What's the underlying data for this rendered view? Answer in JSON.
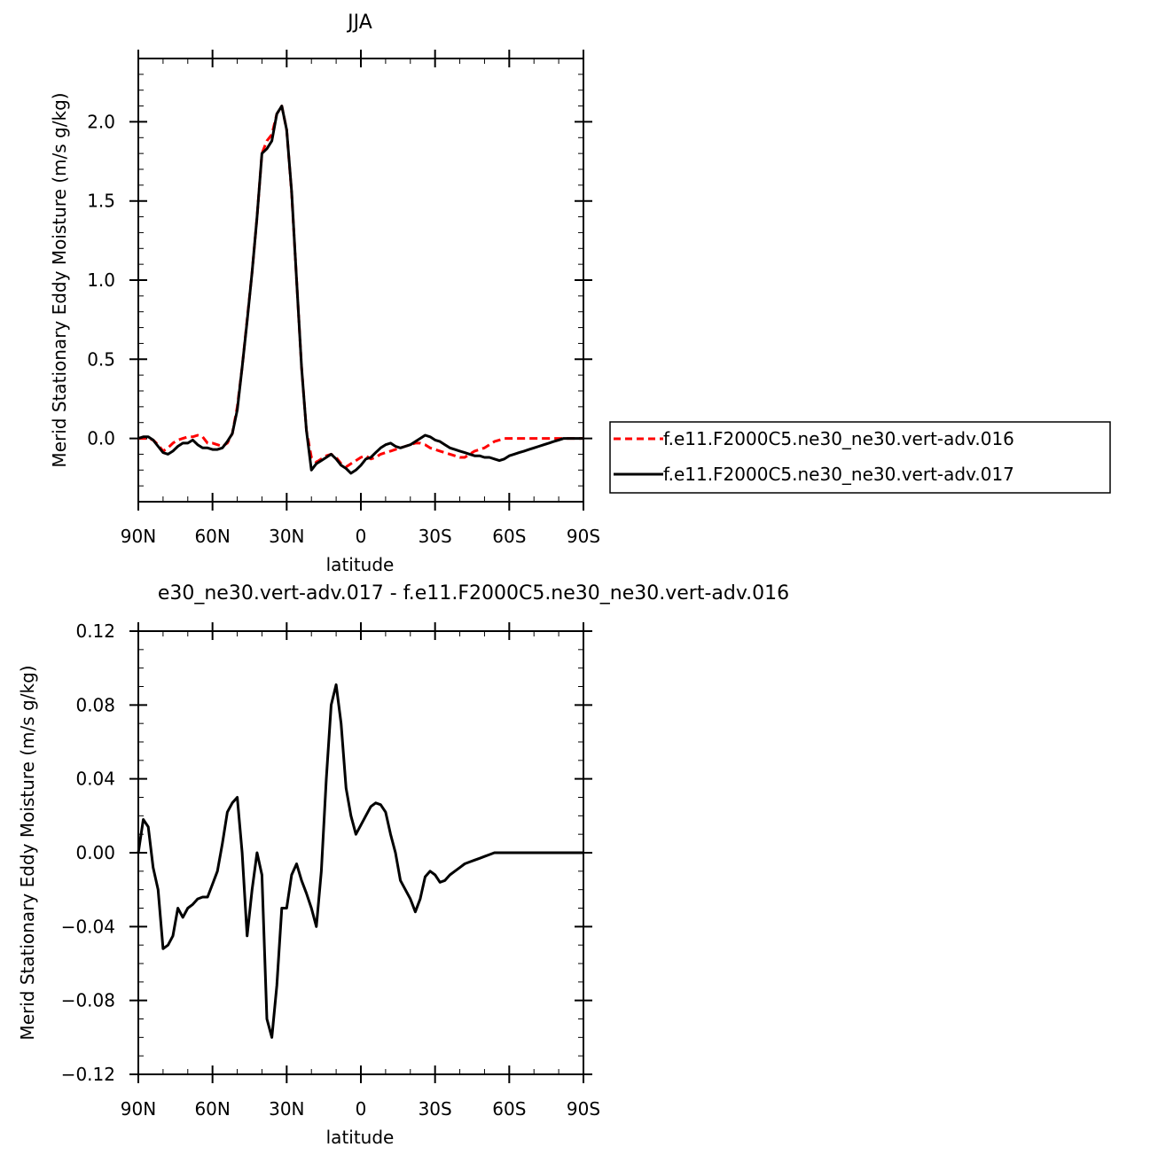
{
  "chart_data": [
    {
      "type": "line",
      "title": "JJA",
      "xlabel": "latitude",
      "ylabel": "Merid Stationary Eddy Moisture (m/s g/kg)",
      "xlim": [
        90,
        -90
      ],
      "ylim": [
        -0.4,
        2.4
      ],
      "x_ticks": [
        {
          "value": 90,
          "label": "90N"
        },
        {
          "value": 60,
          "label": "60N"
        },
        {
          "value": 30,
          "label": "30N"
        },
        {
          "value": 0,
          "label": "0"
        },
        {
          "value": -30,
          "label": "30S"
        },
        {
          "value": -60,
          "label": "60S"
        },
        {
          "value": -90,
          "label": "90S"
        }
      ],
      "y_ticks": [
        {
          "value": 0.0,
          "label": "0.0"
        },
        {
          "value": 0.5,
          "label": "0.5"
        },
        {
          "value": 1.0,
          "label": "1.0"
        },
        {
          "value": 1.5,
          "label": "1.5"
        },
        {
          "value": 2.0,
          "label": "2.0"
        }
      ],
      "legend": "right",
      "series": [
        {
          "name": "f.e11.F2000C5.ne30_ne30.vert-adv.016",
          "color": "#ff0000",
          "dash": "dashed",
          "x": [
            90,
            88,
            86,
            84,
            82,
            80,
            78,
            76,
            74,
            72,
            70,
            68,
            66,
            64,
            62,
            60,
            58,
            56,
            54,
            52,
            50,
            48,
            46,
            44,
            42,
            40,
            38,
            36,
            34,
            32,
            30,
            28,
            26,
            24,
            22,
            20,
            18,
            16,
            14,
            12,
            10,
            8,
            6,
            4,
            2,
            0,
            -2,
            -4,
            -6,
            -8,
            -10,
            -12,
            -14,
            -16,
            -18,
            -20,
            -22,
            -24,
            -26,
            -28,
            -30,
            -32,
            -34,
            -36,
            -38,
            -40,
            -42,
            -44,
            -46,
            -48,
            -50,
            -52,
            -54,
            -56,
            -58,
            -60,
            -62,
            -64,
            -66,
            -68,
            -70,
            -72,
            -74,
            -76,
            -78,
            -80,
            -82,
            -84,
            -86,
            -88,
            -90
          ],
          "y": [
            0.0,
            0.0,
            0.0,
            -0.01,
            -0.04,
            -0.08,
            -0.06,
            -0.03,
            -0.01,
            0.0,
            0.01,
            0.01,
            0.02,
            0.01,
            -0.03,
            -0.03,
            -0.04,
            -0.05,
            -0.03,
            0.03,
            0.2,
            0.45,
            0.75,
            1.05,
            1.4,
            1.8,
            1.88,
            1.92,
            2.05,
            2.1,
            1.95,
            1.55,
            1.0,
            0.45,
            0.05,
            -0.12,
            -0.15,
            -0.13,
            -0.11,
            -0.1,
            -0.12,
            -0.16,
            -0.18,
            -0.16,
            -0.14,
            -0.12,
            -0.11,
            -0.13,
            -0.12,
            -0.1,
            -0.09,
            -0.08,
            -0.07,
            -0.06,
            -0.05,
            -0.04,
            -0.03,
            -0.03,
            -0.04,
            -0.06,
            -0.07,
            -0.08,
            -0.09,
            -0.1,
            -0.11,
            -0.12,
            -0.12,
            -0.1,
            -0.08,
            -0.07,
            -0.06,
            -0.04,
            -0.02,
            -0.01,
            0.0,
            0.0,
            0.0,
            0.0,
            0.0,
            0.0,
            0.0,
            0.0,
            0.0,
            0.0,
            0.0,
            0.0,
            0.0,
            0.0,
            0.0,
            0.0,
            0.0
          ]
        },
        {
          "name": "f.e11.F2000C5.ne30_ne30.vert-adv.017",
          "color": "#000000",
          "dash": "solid",
          "x": [
            90,
            88,
            86,
            84,
            82,
            80,
            78,
            76,
            74,
            72,
            70,
            68,
            66,
            64,
            62,
            60,
            58,
            56,
            54,
            52,
            50,
            48,
            46,
            44,
            42,
            40,
            38,
            36,
            34,
            32,
            30,
            28,
            26,
            24,
            22,
            20,
            18,
            16,
            14,
            12,
            10,
            8,
            6,
            4,
            2,
            0,
            -2,
            -4,
            -6,
            -8,
            -10,
            -12,
            -14,
            -16,
            -18,
            -20,
            -22,
            -24,
            -26,
            -28,
            -30,
            -32,
            -34,
            -36,
            -38,
            -40,
            -42,
            -44,
            -46,
            -48,
            -50,
            -52,
            -54,
            -56,
            -58,
            -60,
            -62,
            -64,
            -66,
            -68,
            -70,
            -72,
            -74,
            -76,
            -78,
            -80,
            -82,
            -84,
            -86,
            -88,
            -90
          ],
          "y": [
            0.0,
            0.01,
            0.01,
            -0.01,
            -0.05,
            -0.09,
            -0.1,
            -0.08,
            -0.05,
            -0.03,
            -0.03,
            -0.01,
            -0.04,
            -0.06,
            -0.06,
            -0.07,
            -0.07,
            -0.06,
            -0.02,
            0.03,
            0.18,
            0.45,
            0.74,
            1.05,
            1.4,
            1.8,
            1.83,
            1.88,
            2.05,
            2.1,
            1.95,
            1.56,
            1.0,
            0.45,
            0.05,
            -0.2,
            -0.16,
            -0.14,
            -0.12,
            -0.1,
            -0.13,
            -0.17,
            -0.19,
            -0.22,
            -0.2,
            -0.17,
            -0.13,
            -0.12,
            -0.09,
            -0.06,
            -0.04,
            -0.03,
            -0.05,
            -0.06,
            -0.05,
            -0.04,
            -0.02,
            0.0,
            0.02,
            0.01,
            -0.01,
            -0.02,
            -0.04,
            -0.06,
            -0.07,
            -0.08,
            -0.09,
            -0.1,
            -0.11,
            -0.11,
            -0.12,
            -0.12,
            -0.13,
            -0.14,
            -0.13,
            -0.11,
            -0.1,
            -0.09,
            -0.08,
            -0.07,
            -0.06,
            -0.05,
            -0.04,
            -0.03,
            -0.02,
            -0.01,
            0.0,
            0.0,
            0.0,
            0.0,
            0.0
          ]
        }
      ]
    },
    {
      "type": "line",
      "title": "e30_ne30.vert-adv.017 - f.e11.F2000C5.ne30_ne30.vert-adv.016",
      "xlabel": "latitude",
      "ylabel": "Merid Stationary Eddy Moisture (m/s g/kg)",
      "xlim": [
        90,
        -90
      ],
      "ylim": [
        -0.12,
        0.12
      ],
      "x_ticks": [
        {
          "value": 90,
          "label": "90N"
        },
        {
          "value": 60,
          "label": "60N"
        },
        {
          "value": 30,
          "label": "30N"
        },
        {
          "value": 0,
          "label": "0"
        },
        {
          "value": -30,
          "label": "30S"
        },
        {
          "value": -60,
          "label": "60S"
        },
        {
          "value": -90,
          "label": "90S"
        }
      ],
      "y_ticks": [
        {
          "value": 0.12,
          "label": "0.12"
        },
        {
          "value": 0.08,
          "label": "0.08"
        },
        {
          "value": 0.04,
          "label": "0.04"
        },
        {
          "value": 0.0,
          "label": "0.00"
        },
        {
          "value": -0.04,
          "label": "−0.04"
        },
        {
          "value": -0.08,
          "label": "−0.08"
        },
        {
          "value": -0.12,
          "label": "−0.12"
        }
      ],
      "series": [
        {
          "color": "#000000",
          "dash": "solid",
          "x": [
            90,
            88,
            86,
            84,
            82,
            80,
            78,
            76,
            74,
            72,
            70,
            68,
            66,
            64,
            62,
            60,
            58,
            56,
            54,
            52,
            50,
            48,
            46,
            44,
            42,
            40,
            38,
            36,
            34,
            32,
            30,
            28,
            26,
            24,
            22,
            20,
            18,
            16,
            14,
            12,
            10,
            8,
            6,
            4,
            2,
            0,
            -2,
            -4,
            -6,
            -8,
            -10,
            -12,
            -14,
            -16,
            -18,
            -20,
            -22,
            -24,
            -26,
            -28,
            -30,
            -32,
            -34,
            -36,
            -38,
            -40,
            -42,
            -44,
            -46,
            -48,
            -50,
            -52,
            -54,
            -56,
            -58,
            -60,
            -62,
            -64,
            -66,
            -68,
            -70,
            -72,
            -74,
            -76,
            -78,
            -80,
            -82,
            -84,
            -86,
            -88,
            -90
          ],
          "y": [
            0.0,
            0.018,
            0.014,
            -0.008,
            -0.02,
            -0.052,
            -0.05,
            -0.045,
            -0.03,
            -0.035,
            -0.03,
            -0.028,
            -0.025,
            -0.024,
            -0.024,
            -0.017,
            -0.01,
            0.005,
            0.022,
            0.027,
            0.03,
            0.0,
            -0.045,
            -0.02,
            0.0,
            -0.012,
            -0.09,
            -0.1,
            -0.072,
            -0.03,
            -0.03,
            -0.012,
            -0.006,
            -0.015,
            -0.022,
            -0.03,
            -0.04,
            -0.01,
            0.04,
            0.08,
            0.091,
            0.07,
            0.035,
            0.02,
            0.01,
            0.015,
            0.02,
            0.025,
            0.027,
            0.026,
            0.022,
            0.01,
            0.0,
            -0.015,
            -0.02,
            -0.025,
            -0.032,
            -0.025,
            -0.013,
            -0.01,
            -0.012,
            -0.016,
            -0.015,
            -0.012,
            -0.01,
            -0.008,
            -0.006,
            -0.005,
            -0.004,
            -0.003,
            -0.002,
            -0.001,
            0.0,
            0.0,
            0.0,
            0.0,
            0.0,
            0.0,
            0.0,
            0.0,
            0.0,
            0.0,
            0.0,
            0.0,
            0.0,
            0.0,
            0.0,
            0.0,
            0.0,
            0.0,
            0.0
          ]
        }
      ]
    }
  ]
}
